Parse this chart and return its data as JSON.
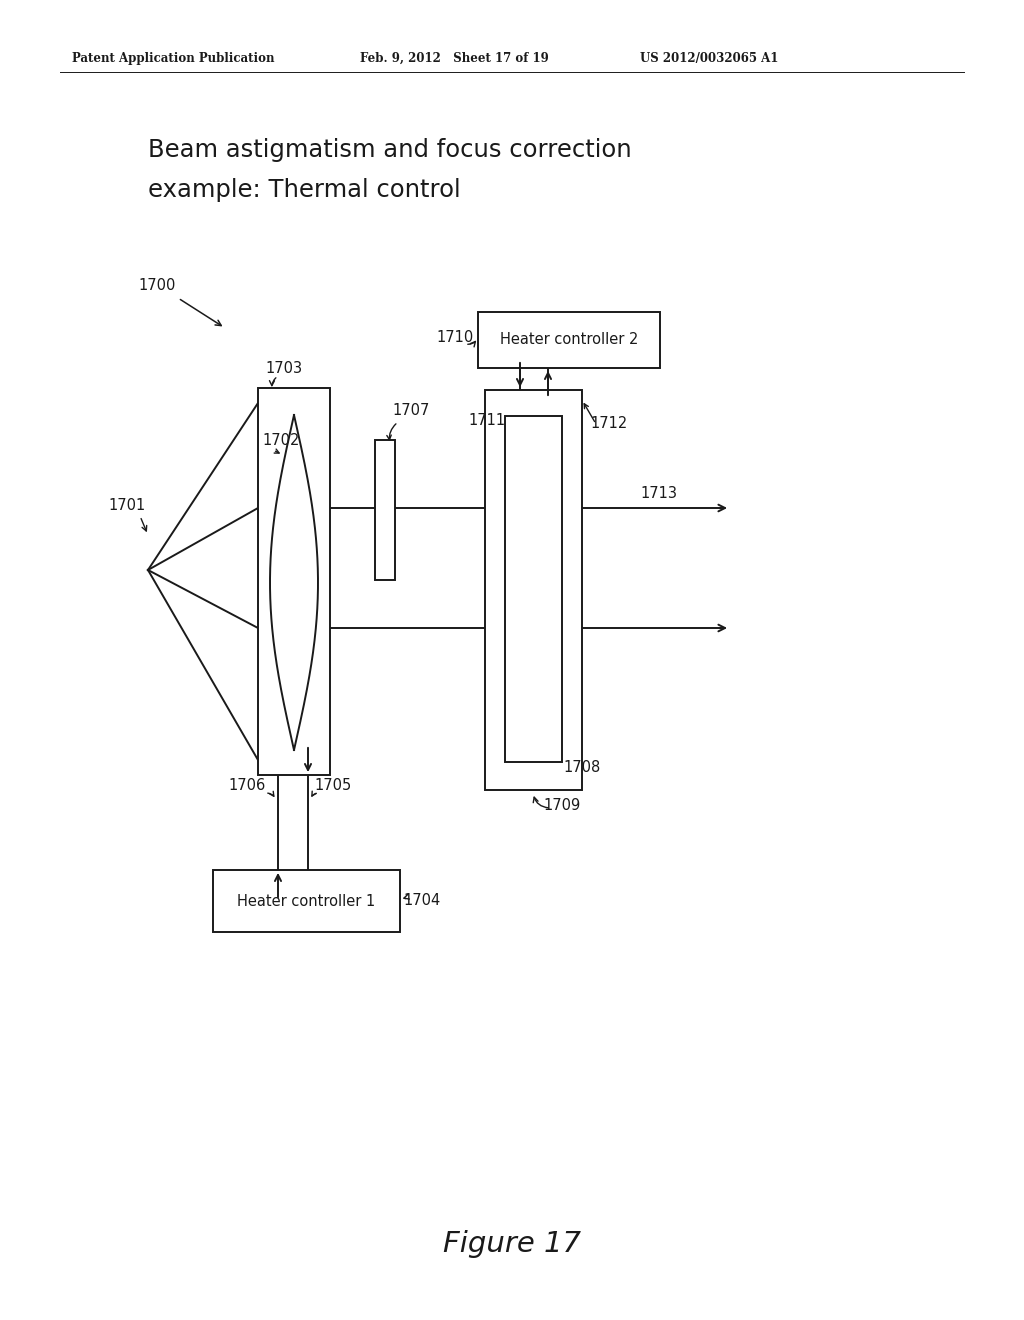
{
  "title_line1": "Beam astigmatism and focus correction",
  "title_line2": "example: Thermal control",
  "header_left": "Patent Application Publication",
  "header_mid": "Feb. 9, 2012   Sheet 17 of 19",
  "header_right": "US 2012/0032065 A1",
  "figure_label": "Figure 17",
  "bg_color": "#ffffff",
  "line_color": "#1a1a1a"
}
